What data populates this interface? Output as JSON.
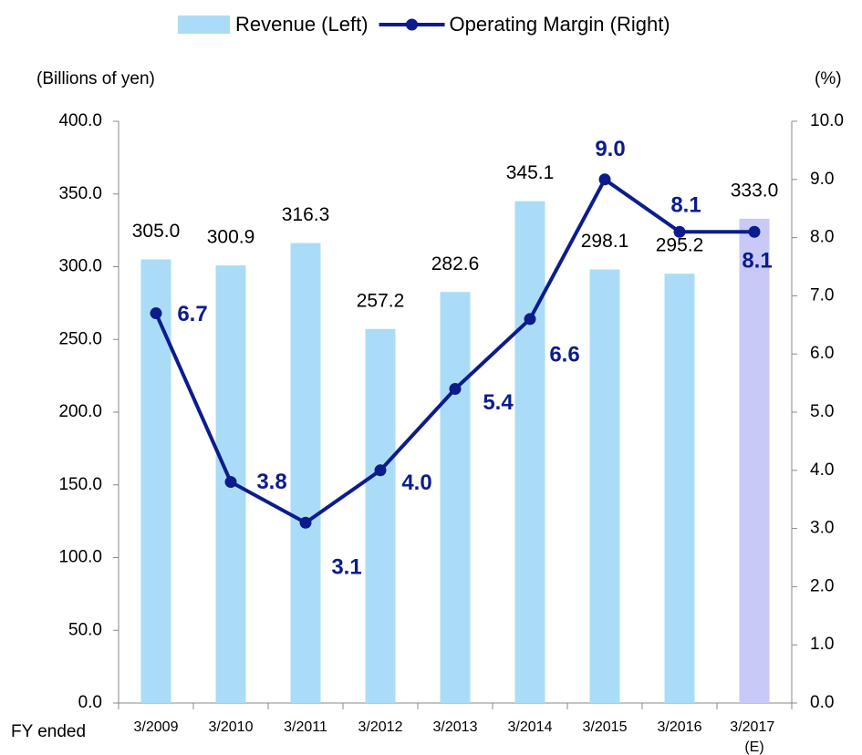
{
  "chart_data": {
    "type": "bar_line",
    "categories": [
      "3/2009",
      "3/2010",
      "3/2011",
      "3/2012",
      "3/2013",
      "3/2014",
      "3/2015",
      "3/2016",
      "3/2017 (E)"
    ],
    "x_label": "FY ended",
    "y_label": "(Billions of yen)",
    "y2_label": "(%)",
    "series": [
      {
        "name": "Revenue (Left)",
        "type": "bar",
        "color": "#aadcf7",
        "colors": [
          "#aadcf7",
          "#aadcf7",
          "#aadcf7",
          "#aadcf7",
          "#aadcf7",
          "#aadcf7",
          "#aadcf7",
          "#aadcf7",
          "#c9c9f7"
        ],
        "values": [
          305.0,
          300.9,
          316.3,
          257.2,
          282.6,
          345.1,
          298.1,
          295.2,
          333.0
        ],
        "value_labels": [
          "305.0",
          "300.9",
          "316.3",
          "257.2",
          "282.6",
          "345.1",
          "298.1",
          "295.2",
          "333.0"
        ]
      },
      {
        "name": "Operating Margin (Right)",
        "type": "line",
        "axis": "y2",
        "color": "#0c1c8c",
        "values": [
          6.7,
          3.8,
          3.1,
          4.0,
          5.4,
          6.6,
          9.0,
          8.1,
          8.1
        ],
        "value_labels": [
          "6.7",
          "3.8",
          "3.1",
          "4.0",
          "5.4",
          "6.6",
          "9.0",
          "8.1",
          "8.1"
        ]
      }
    ],
    "ylim": [
      0,
      400
    ],
    "yticks": [
      {
        "value": 0,
        "label": "0.0"
      },
      {
        "value": 50,
        "label": "50.0"
      },
      {
        "value": 100,
        "label": "100.0"
      },
      {
        "value": 150,
        "label": "150.0"
      },
      {
        "value": 200,
        "label": "200.0"
      },
      {
        "value": 250,
        "label": "250.0"
      },
      {
        "value": 300,
        "label": "300.0"
      },
      {
        "value": 350,
        "label": "350.0"
      },
      {
        "value": 400,
        "label": "400.0"
      }
    ],
    "y2lim": [
      0,
      10
    ],
    "y2ticks": [
      {
        "value": 0,
        "label": "0.0"
      },
      {
        "value": 1,
        "label": "1.0"
      },
      {
        "value": 2,
        "label": "2.0"
      },
      {
        "value": 3,
        "label": "3.0"
      },
      {
        "value": 4,
        "label": "4.0"
      },
      {
        "value": 5,
        "label": "5.0"
      },
      {
        "value": 6,
        "label": "6.0"
      },
      {
        "value": 7,
        "label": "7.0"
      },
      {
        "value": 8,
        "label": "8.0"
      },
      {
        "value": 9,
        "label": "9.0"
      },
      {
        "value": 10,
        "label": "10.0"
      }
    ],
    "legend": "top"
  }
}
